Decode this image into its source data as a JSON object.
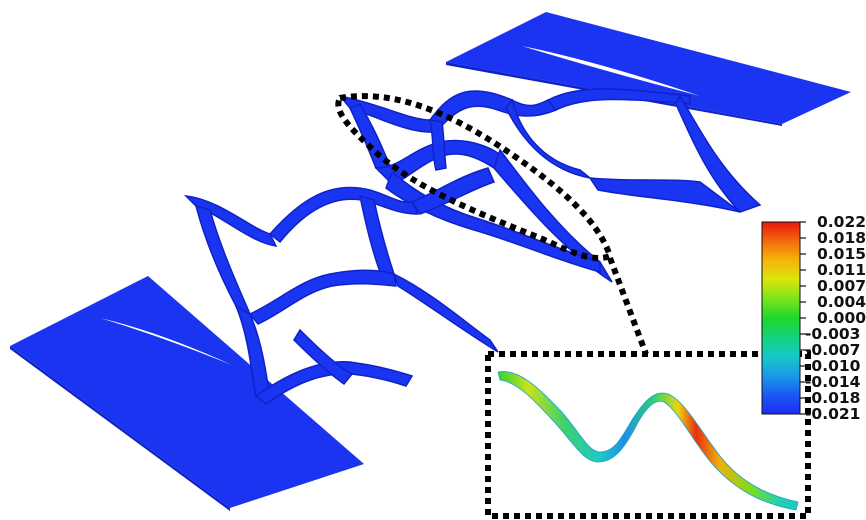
{
  "colorbar": {
    "labels": [
      "0.022",
      "0.018",
      "0.015",
      "0.011",
      "0.007",
      "0.004",
      "0.000",
      "-0.003",
      "-0.007",
      "-0.010",
      "-0.014",
      "-0.018",
      "-0.021"
    ],
    "max": 0.022,
    "min": -0.021,
    "gradient_stops": [
      "#e8170f",
      "#f26b0c",
      "#f5b60a",
      "#d8e60a",
      "#7de51a",
      "#1ed72c",
      "#14d37a",
      "#16c9c9",
      "#1a9ae8",
      "#1b5af2",
      "#1c2cf3"
    ]
  },
  "colors": {
    "structure": "#1830f0",
    "structure_dark": "#0f22c8",
    "zoom_outline": "#000000"
  }
}
